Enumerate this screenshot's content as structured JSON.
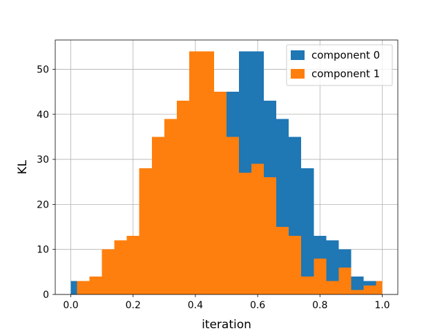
{
  "chart_data": {
    "type": "bar",
    "subtype": "overlaid-histogram",
    "title": "",
    "xlabel": "iteration",
    "ylabel": "KL",
    "xlim": [
      -0.05,
      1.05
    ],
    "ylim": [
      0,
      56.5
    ],
    "xticks": [
      0.0,
      0.2,
      0.4,
      0.6,
      0.8,
      1.0
    ],
    "xtick_labels": [
      "0.0",
      "0.2",
      "0.4",
      "0.6",
      "0.8",
      "1.0"
    ],
    "yticks": [
      0,
      10,
      20,
      30,
      40,
      50
    ],
    "ytick_labels": [
      "0",
      "10",
      "20",
      "30",
      "40",
      "50"
    ],
    "grid": true,
    "legend_position": "top-right",
    "series": [
      {
        "name": "component 0",
        "color": "#1f77b4",
        "bins": [
          {
            "x0": 0.0,
            "x1": 0.02,
            "count": 3
          },
          {
            "x0": 0.02,
            "x1": 0.06,
            "count": 3
          },
          {
            "x0": 0.06,
            "x1": 0.1,
            "count": 4
          },
          {
            "x0": 0.1,
            "x1": 0.14,
            "count": 10
          },
          {
            "x0": 0.14,
            "x1": 0.18,
            "count": 12
          },
          {
            "x0": 0.18,
            "x1": 0.22,
            "count": 13
          },
          {
            "x0": 0.22,
            "x1": 0.26,
            "count": 28
          },
          {
            "x0": 0.26,
            "x1": 0.3,
            "count": 35
          },
          {
            "x0": 0.3,
            "x1": 0.34,
            "count": 39
          },
          {
            "x0": 0.34,
            "x1": 0.38,
            "count": 43
          },
          {
            "x0": 0.38,
            "x1": 0.42,
            "count": 54
          },
          {
            "x0": 0.42,
            "x1": 0.46,
            "count": 54
          },
          {
            "x0": 0.46,
            "x1": 0.5,
            "count": 45
          },
          {
            "x0": 0.5,
            "x1": 0.54,
            "count": 45
          },
          {
            "x0": 0.54,
            "x1": 0.58,
            "count": 54
          },
          {
            "x0": 0.58,
            "x1": 0.62,
            "count": 54
          },
          {
            "x0": 0.62,
            "x1": 0.66,
            "count": 43
          },
          {
            "x0": 0.66,
            "x1": 0.7,
            "count": 39
          },
          {
            "x0": 0.7,
            "x1": 0.74,
            "count": 35
          },
          {
            "x0": 0.74,
            "x1": 0.78,
            "count": 28
          },
          {
            "x0": 0.78,
            "x1": 0.82,
            "count": 13
          },
          {
            "x0": 0.82,
            "x1": 0.86,
            "count": 12
          },
          {
            "x0": 0.86,
            "x1": 0.9,
            "count": 10
          },
          {
            "x0": 0.9,
            "x1": 0.94,
            "count": 4
          },
          {
            "x0": 0.94,
            "x1": 0.98,
            "count": 3
          },
          {
            "x0": 0.98,
            "x1": 1.0,
            "count": 3
          }
        ]
      },
      {
        "name": "component 1",
        "color": "#ff7f0e",
        "bins": [
          {
            "x0": 0.02,
            "x1": 0.06,
            "count": 3
          },
          {
            "x0": 0.06,
            "x1": 0.1,
            "count": 4
          },
          {
            "x0": 0.1,
            "x1": 0.14,
            "count": 10
          },
          {
            "x0": 0.14,
            "x1": 0.18,
            "count": 12
          },
          {
            "x0": 0.18,
            "x1": 0.22,
            "count": 13
          },
          {
            "x0": 0.22,
            "x1": 0.26,
            "count": 28
          },
          {
            "x0": 0.26,
            "x1": 0.3,
            "count": 35
          },
          {
            "x0": 0.3,
            "x1": 0.34,
            "count": 39
          },
          {
            "x0": 0.34,
            "x1": 0.38,
            "count": 43
          },
          {
            "x0": 0.38,
            "x1": 0.46,
            "count": 54
          },
          {
            "x0": 0.46,
            "x1": 0.5,
            "count": 45
          },
          {
            "x0": 0.5,
            "x1": 0.54,
            "count": 35
          },
          {
            "x0": 0.54,
            "x1": 0.58,
            "count": 27
          },
          {
            "x0": 0.58,
            "x1": 0.62,
            "count": 29
          },
          {
            "x0": 0.62,
            "x1": 0.66,
            "count": 26
          },
          {
            "x0": 0.66,
            "x1": 0.7,
            "count": 15
          },
          {
            "x0": 0.7,
            "x1": 0.74,
            "count": 13
          },
          {
            "x0": 0.74,
            "x1": 0.78,
            "count": 4
          },
          {
            "x0": 0.78,
            "x1": 0.82,
            "count": 8
          },
          {
            "x0": 0.82,
            "x1": 0.86,
            "count": 3
          },
          {
            "x0": 0.86,
            "x1": 0.9,
            "count": 6
          },
          {
            "x0": 0.9,
            "x1": 0.94,
            "count": 1
          },
          {
            "x0": 0.94,
            "x1": 0.98,
            "count": 2
          },
          {
            "x0": 0.98,
            "x1": 1.0,
            "count": 3
          }
        ]
      }
    ]
  }
}
